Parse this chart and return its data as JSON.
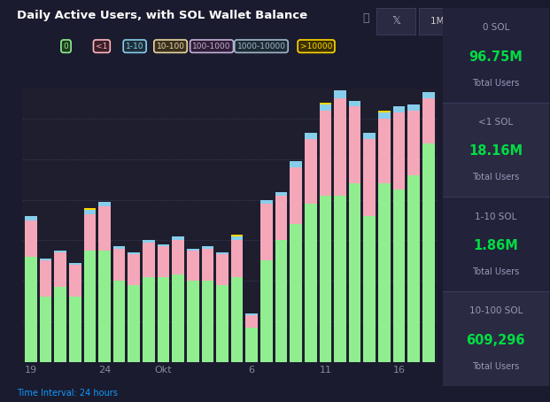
{
  "title": "Daily Active Users, with SOL Wallet Balance",
  "bg_color": "#1a1b2e",
  "chart_bg": "#1e1e2e",
  "time_label": "Time Interval: 24 hours",
  "x_labels": [
    "19",
    "",
    "",
    "",
    "",
    "24",
    "",
    "",
    "",
    "Okt",
    "",
    "",
    "",
    "",
    "",
    "6",
    "",
    "",
    "",
    "",
    "11",
    "",
    "",
    "",
    "",
    "16",
    "",
    ""
  ],
  "legend_labels": [
    "0",
    "<1",
    "1-10",
    "10-100",
    "100-1000",
    "1000-10000",
    ">10000"
  ],
  "legend_colors": [
    "#90ee90",
    "#ffb6c1",
    "#87ceeb",
    "#e8d5a0",
    "#c8b0d8",
    "#a0b8cc",
    "#ffd700"
  ],
  "legend_text_colors": [
    "#90ee90",
    "#ffb6c1",
    "#87ceeb",
    "#e8d5a0",
    "#c8b0d8",
    "#a0b8cc",
    "#ffd700"
  ],
  "sidebar_labels": [
    "0 SOL",
    "<1 SOL",
    "1-10 SOL",
    "10-100 SOL"
  ],
  "sidebar_values": [
    "96.75M",
    "18.16M",
    "1.86M",
    "609,296"
  ],
  "sidebar_sub": "Total Users",
  "colors": {
    "green": "#90EE90",
    "pink": "#F4A7B9",
    "blue": "#87CEEB",
    "wheat": "#E8D5A0",
    "plum": "#C8B0D8",
    "steel": "#A0B8CC",
    "gold": "#FFD700"
  },
  "bars": {
    "green": [
      52,
      32,
      37,
      32,
      55,
      55,
      40,
      38,
      42,
      42,
      43,
      40,
      40,
      38,
      42,
      17,
      50,
      60,
      68,
      78,
      82,
      82,
      88,
      72,
      88,
      85,
      92,
      108
    ],
    "pink": [
      18,
      18,
      17,
      16,
      18,
      22,
      16,
      15,
      17,
      15,
      17,
      15,
      16,
      15,
      18,
      6,
      28,
      22,
      28,
      32,
      42,
      48,
      38,
      38,
      32,
      38,
      32,
      22
    ],
    "blue": [
      2,
      1,
      1,
      1,
      2,
      2,
      1,
      1,
      1,
      1,
      2,
      1,
      1,
      1,
      2,
      1,
      2,
      2,
      3,
      3,
      3,
      4,
      3,
      3,
      3,
      3,
      3,
      3
    ],
    "wheat": [
      0,
      0,
      0,
      0,
      0,
      0,
      0,
      0,
      0,
      0,
      0,
      0,
      0,
      0,
      0,
      0,
      0,
      0,
      0,
      0,
      0,
      0,
      0,
      0,
      0,
      0,
      0,
      0
    ],
    "plum": [
      0,
      0,
      0,
      0,
      0,
      0,
      0,
      0,
      0,
      0,
      0,
      0,
      0,
      0,
      0,
      0,
      0,
      0,
      0,
      0,
      0,
      0,
      0,
      0,
      0,
      0,
      0,
      0
    ],
    "steel": [
      0,
      0,
      0,
      0,
      0,
      0,
      0,
      0,
      0,
      0,
      0,
      0,
      0,
      0,
      0,
      0,
      0,
      0,
      0,
      0,
      0,
      0,
      0,
      0,
      0,
      0,
      0,
      0
    ],
    "gold": [
      0,
      0,
      0,
      0,
      1,
      0,
      0,
      0,
      0,
      0,
      0,
      0,
      0,
      0,
      1,
      0,
      0,
      0,
      0,
      0,
      1,
      0,
      0,
      0,
      1,
      0,
      0,
      0
    ]
  },
  "ylim": [
    0,
    135
  ],
  "grid_color": "#3a3a5a",
  "tick_color": "#888899",
  "title_color": "#ffffff",
  "sidebar_label_color": "#9999bb",
  "sidebar_value_color": "#00dd44",
  "sidebar_bg_colors": [
    "#22223a",
    "#2a2a42",
    "#22223a",
    "#2a2a42"
  ]
}
